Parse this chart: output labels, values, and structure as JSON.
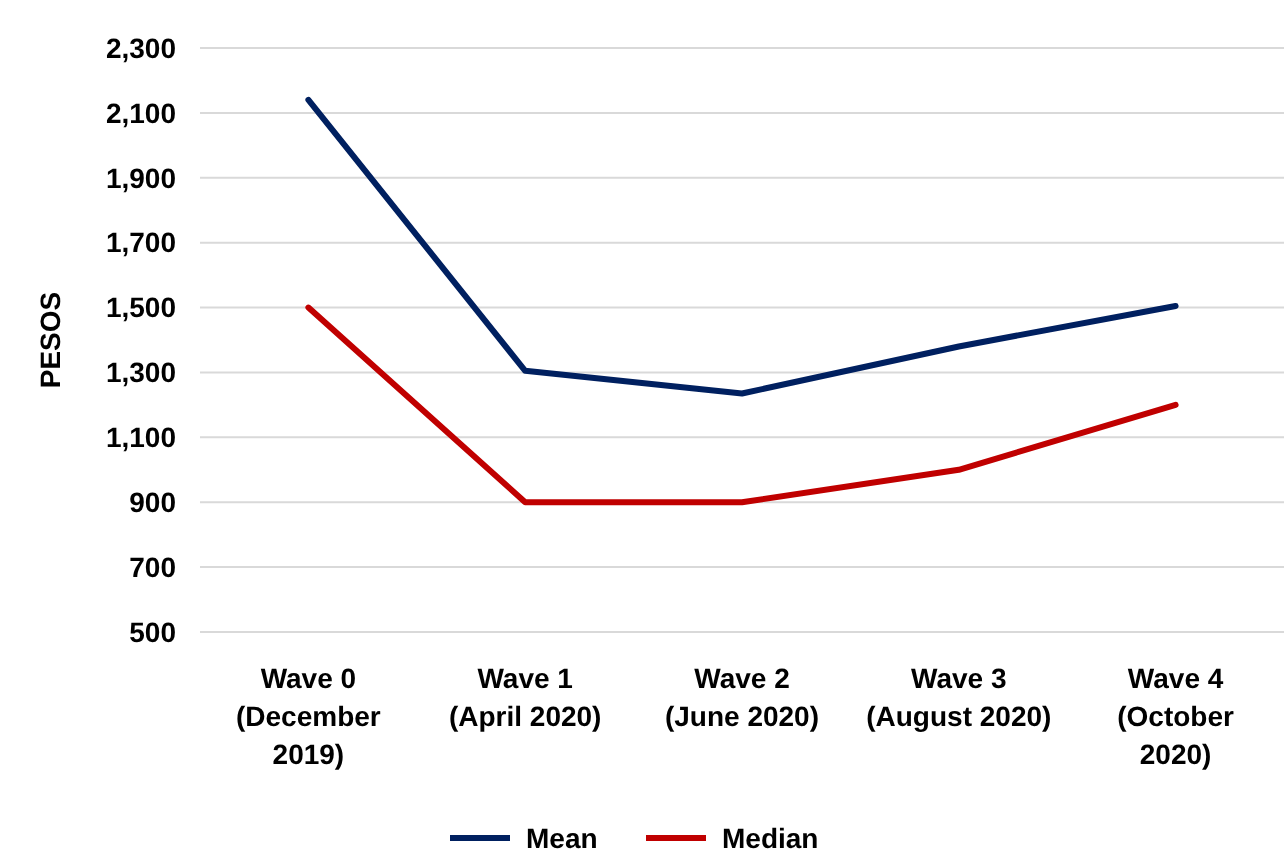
{
  "chart_data": {
    "type": "line",
    "ylabel": "PESOS",
    "categories": [
      "Wave 0\n(December\n2019)",
      "Wave 1\n(April 2020)",
      "Wave 2\n(June 2020)",
      "Wave 3\n(August 2020)",
      "Wave 4\n(October\n2020)"
    ],
    "series": [
      {
        "name": "Mean",
        "color": "#002060",
        "values": [
          2140,
          1305,
          1235,
          1380,
          1505
        ]
      },
      {
        "name": "Median",
        "color": "#c00000",
        "values": [
          1500,
          900,
          900,
          1000,
          1200
        ]
      }
    ],
    "ylim": [
      500,
      2300
    ],
    "yticks": [
      {
        "value": 500,
        "label": "500"
      },
      {
        "value": 700,
        "label": "700"
      },
      {
        "value": 900,
        "label": "900"
      },
      {
        "value": 1100,
        "label": "1,100"
      },
      {
        "value": 1300,
        "label": "1,300"
      },
      {
        "value": 1500,
        "label": "1,500"
      },
      {
        "value": 1700,
        "label": "1,700"
      },
      {
        "value": 1900,
        "label": "1,900"
      },
      {
        "value": 2100,
        "label": "2,100"
      },
      {
        "value": 2300,
        "label": "2,300"
      }
    ],
    "grid": "y",
    "legend": "bottom",
    "marker": "none",
    "line_style": "solid"
  }
}
